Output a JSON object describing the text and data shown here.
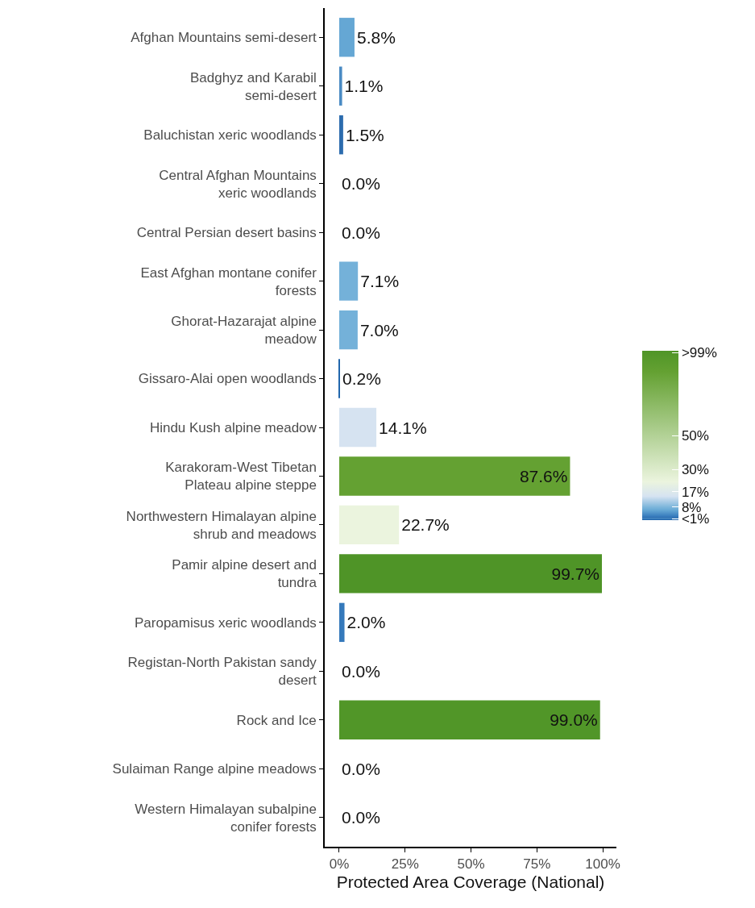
{
  "chart_data": {
    "type": "bar",
    "orientation": "horizontal",
    "xlabel": "Protected Area Coverage (National)",
    "categories": [
      "Afghan Mountains semi-desert",
      "Badghyz and Karabil\nsemi-desert",
      "Baluchistan xeric woodlands",
      "Central Afghan Mountains\nxeric woodlands",
      "Central Persian desert basins",
      "East Afghan montane conifer\nforests",
      "Ghorat-Hazarajat alpine\nmeadow",
      "Gissaro-Alai open woodlands",
      "Hindu Kush alpine meadow",
      "Karakoram-West Tibetan\nPlateau alpine steppe",
      "Northwestern Himalayan alpine\nshrub and meadows",
      "Pamir alpine desert and\ntundra",
      "Paropamisus xeric woodlands",
      "Registan-North Pakistan sandy\ndesert",
      "Rock and Ice",
      "Sulaiman Range alpine meadows",
      "Western Himalayan subalpine\nconifer forests"
    ],
    "values": [
      5.8,
      1.1,
      1.5,
      0.0,
      0.0,
      7.1,
      7.0,
      0.2,
      14.1,
      87.6,
      22.7,
      99.7,
      2.0,
      0.0,
      99.0,
      0.0,
      0.0
    ],
    "value_labels": [
      "5.8%",
      "1.1%",
      "1.5%",
      "0.0%",
      "0.0%",
      "7.1%",
      "7.0%",
      "0.2%",
      "14.1%",
      "87.6%",
      "22.7%",
      "99.7%",
      "2.0%",
      "0.0%",
      "99.0%",
      "0.0%",
      "0.0%"
    ],
    "colors": [
      "#65a7d4",
      "#4a8bc4",
      "#2c6cae",
      "#2166ac",
      "#2166ac",
      "#74b1d9",
      "#74b1d9",
      "#2166ac",
      "#d6e3f1",
      "#64a132",
      "#ebf4de",
      "#4f9427",
      "#3579bb",
      "#2166ac",
      "#519628",
      "#2166ac",
      "#2166ac"
    ],
    "xlim": [
      -5.5,
      105.2
    ],
    "xticks": [
      {
        "value": 0,
        "label": "0%"
      },
      {
        "value": 25,
        "label": "25%"
      },
      {
        "value": 50,
        "label": "50%"
      },
      {
        "value": 75,
        "label": "75%"
      },
      {
        "value": 100,
        "label": "100%"
      }
    ],
    "clim": [
      0,
      100
    ],
    "cticks": [
      {
        "value": 99,
        "label": ">99%"
      },
      {
        "value": 50,
        "label": "50%"
      },
      {
        "value": 30,
        "label": "30%"
      },
      {
        "value": 17,
        "label": "17%"
      },
      {
        "value": 8,
        "label": "8%"
      },
      {
        "value": 1,
        "label": "<1%"
      }
    ]
  }
}
